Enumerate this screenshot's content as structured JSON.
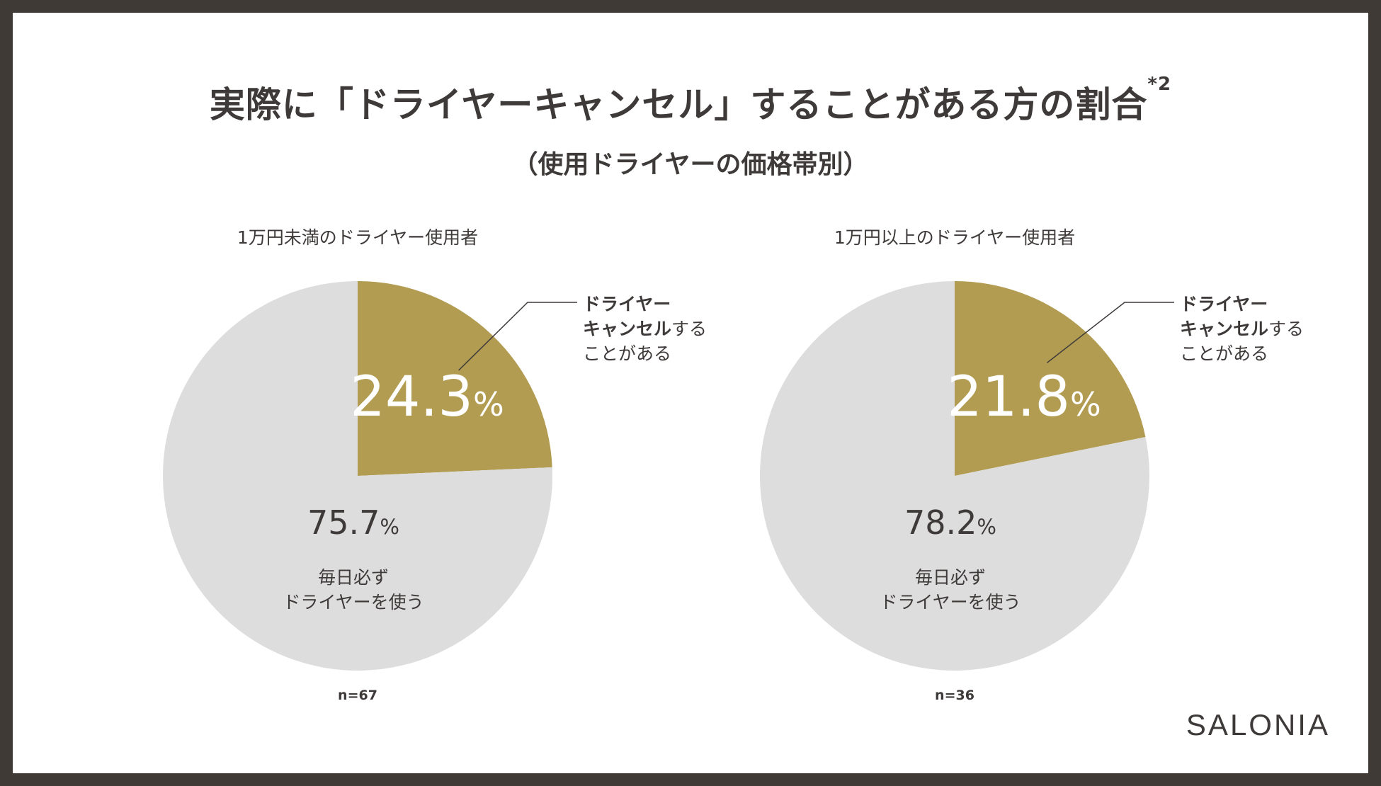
{
  "title": "実際に「ドライヤーキャンセル」することがある方の割合",
  "title_note": "*2",
  "subtitle": "（使用ドライヤーの価格帯別）",
  "brand": "SALONIA",
  "colors": {
    "highlight": "#b29c52",
    "rest": "#dddddd",
    "dark_text": "#3e3a39",
    "frame": "#403a36"
  },
  "chart_data": [
    {
      "type": "pie",
      "title": "1万円未満のドライヤー使用者",
      "n_label": "n=67",
      "slices": [
        {
          "label_bold": "ドライヤーキャンセル",
          "label_line1": "ドライヤー",
          "label_line2_bold": "キャンセル",
          "label_line2_tail": "する",
          "label_line3": "ことがある",
          "value": 24.3,
          "display": "24.3",
          "color": "#b29c52"
        },
        {
          "label_line1": "毎日必ず",
          "label_line2": "ドライヤーを使う",
          "value": 75.7,
          "display": "75.7",
          "color": "#dddddd"
        }
      ],
      "unit": "%"
    },
    {
      "type": "pie",
      "title": "1万円以上のドライヤー使用者",
      "n_label": "n=36",
      "slices": [
        {
          "label_line1": "ドライヤー",
          "label_line2_bold": "キャンセル",
          "label_line2_tail": "する",
          "label_line3": "ことがある",
          "value": 21.8,
          "display": "21.8",
          "color": "#b29c52"
        },
        {
          "label_line1": "毎日必ず",
          "label_line2": "ドライヤーを使う",
          "value": 78.2,
          "display": "78.2",
          "color": "#dddddd"
        }
      ],
      "unit": "%"
    }
  ]
}
